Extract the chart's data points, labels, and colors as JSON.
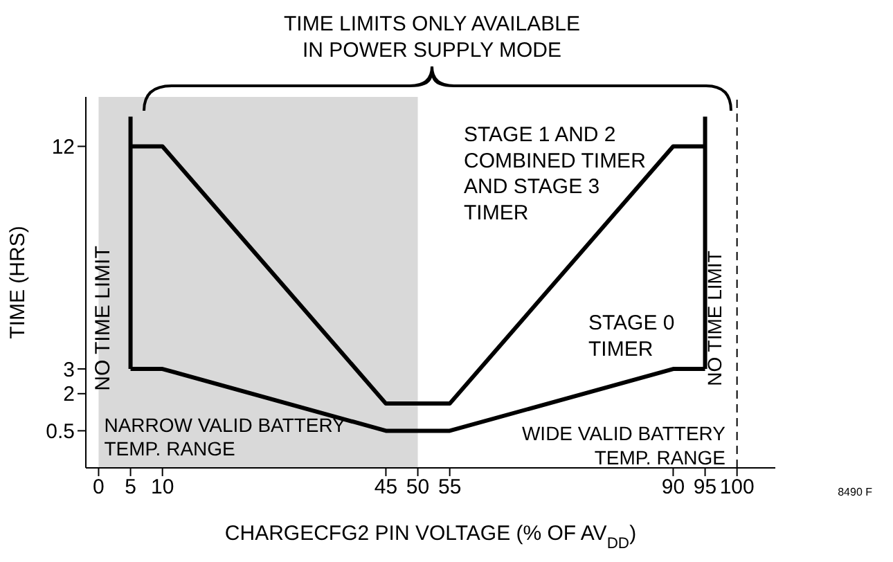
{
  "chart_data": {
    "type": "line",
    "xlabel": "CHARGECFG2 PIN VOLTAGE (% OF AV$_{DD}$)",
    "ylabel": "TIME (HRS)",
    "series": [
      {
        "color": "#000000",
        "x": [
          5,
          5
        ],
        "values": [
          13.2,
          3
        ]
      },
      {
        "color": "#000000",
        "x": [
          5,
          10,
          45,
          55,
          90,
          95
        ],
        "values": [
          12,
          12,
          1.6,
          1.6,
          12,
          12
        ]
      },
      {
        "color": "#000000",
        "x": [
          5,
          10,
          45,
          55,
          90,
          95
        ],
        "values": [
          3,
          3,
          0.5,
          0.5,
          3,
          3
        ]
      },
      {
        "color": "#000000",
        "x": [
          95,
          95
        ],
        "values": [
          13.2,
          3
        ]
      }
    ],
    "xlim": [
      -2,
      106
    ],
    "xticks": [
      0,
      5,
      10,
      45,
      50,
      55,
      90,
      95,
      100
    ],
    "ylim": [
      -1,
      14
    ],
    "yticks": [
      0.5,
      2,
      3,
      12
    ],
    "ref_lines": [
      {
        "axis": "x",
        "value": 100,
        "line_style": "dashed",
        "color": "#000000"
      }
    ],
    "bands": [
      {
        "axis": "x",
        "from": 0,
        "to": 50,
        "color": "#d9d9d9",
        "label": "NARROW VALID BATTERY TEMP. RANGE"
      }
    ],
    "annotations": [
      "TIME LIMITS ONLY AVAILABLE IN POWER SUPPLY MODE",
      "NO TIME LIMIT",
      "STAGE 1 AND 2 COMBINED TIMER AND STAGE 3 TIMER",
      "STAGE 0 TIMER",
      "NO TIME LIMIT",
      "WIDE VALID BATTERY TEMP. RANGE",
      "8490 F"
    ],
    "grid": false,
    "marker": "none",
    "line_style": "solid"
  }
}
